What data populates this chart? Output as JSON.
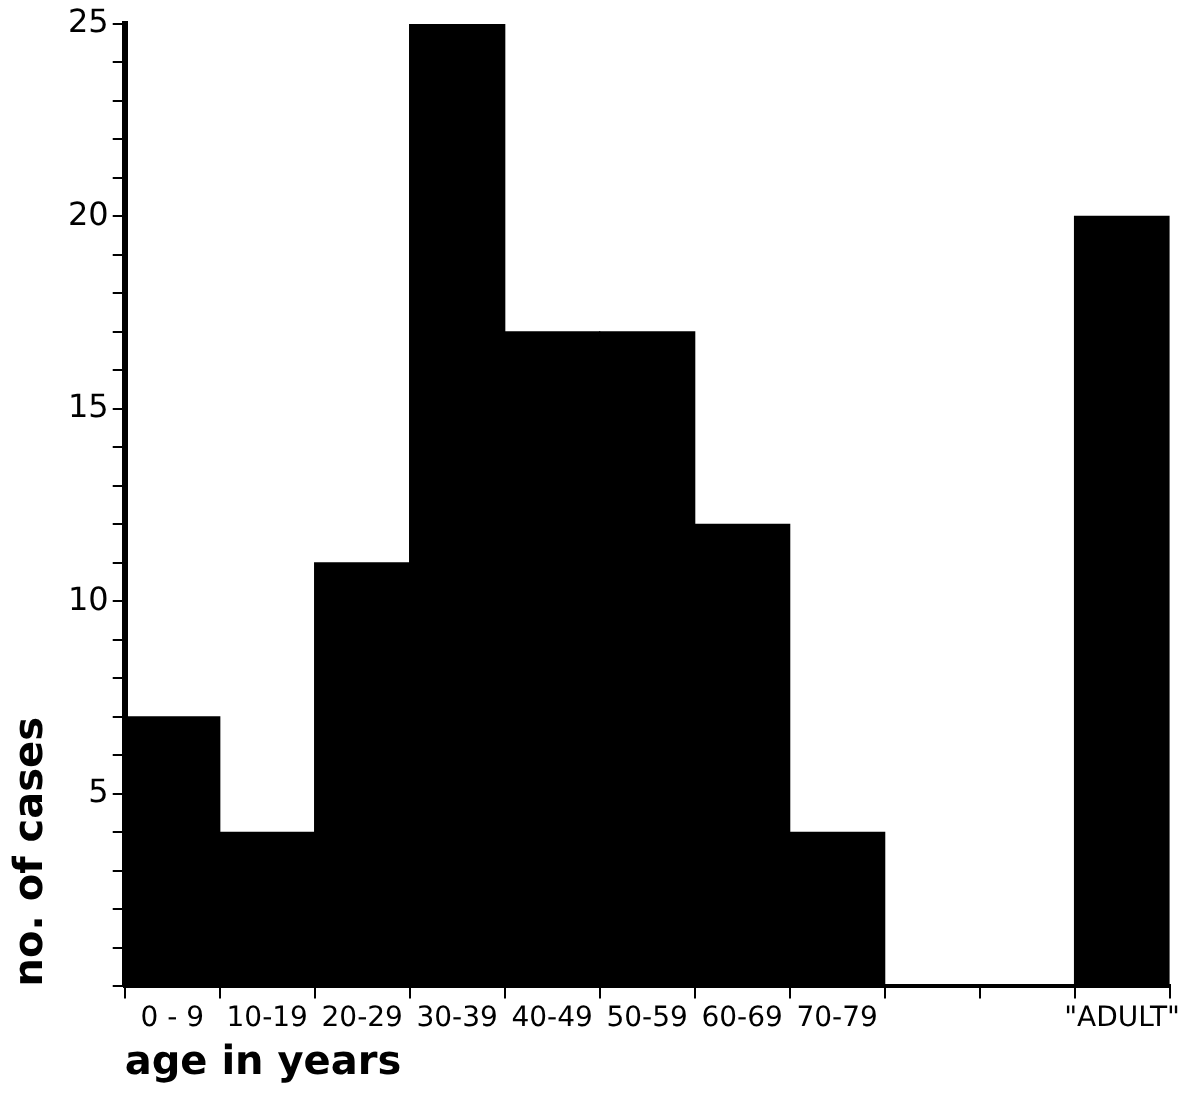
{
  "chart_data": {
    "type": "bar",
    "xlabel": "age in years",
    "ylabel": "no. of cases",
    "categories": [
      "0 - 9",
      "10-19",
      "20-29",
      "30-39",
      "40-49",
      "50-59",
      "60-69",
      "70-79",
      null,
      null,
      "\"ADULT\""
    ],
    "values": [
      7,
      4,
      11,
      25,
      17,
      17,
      12,
      4,
      null,
      null,
      20
    ],
    "color": "#000000",
    "ylim": [
      0,
      25
    ],
    "yticks": [
      {
        "value": 0,
        "label": null
      },
      {
        "value": 1,
        "label": null
      },
      {
        "value": 2,
        "label": null
      },
      {
        "value": 3,
        "label": null
      },
      {
        "value": 4,
        "label": null
      },
      5,
      {
        "value": 6,
        "label": null
      },
      {
        "value": 7,
        "label": null
      },
      {
        "value": 8,
        "label": null
      },
      {
        "value": 9,
        "label": null
      },
      10,
      {
        "value": 11,
        "label": null
      },
      {
        "value": 12,
        "label": null
      },
      {
        "value": 13,
        "label": null
      },
      {
        "value": 14,
        "label": null
      },
      15,
      {
        "value": 16,
        "label": null
      },
      {
        "value": 17,
        "label": null
      },
      {
        "value": 18,
        "label": null
      },
      {
        "value": 19,
        "label": null
      },
      20,
      {
        "value": 21,
        "label": null
      },
      {
        "value": 22,
        "label": null
      },
      {
        "value": 23,
        "label": null
      },
      {
        "value": 24,
        "label": null
      },
      25
    ]
  }
}
